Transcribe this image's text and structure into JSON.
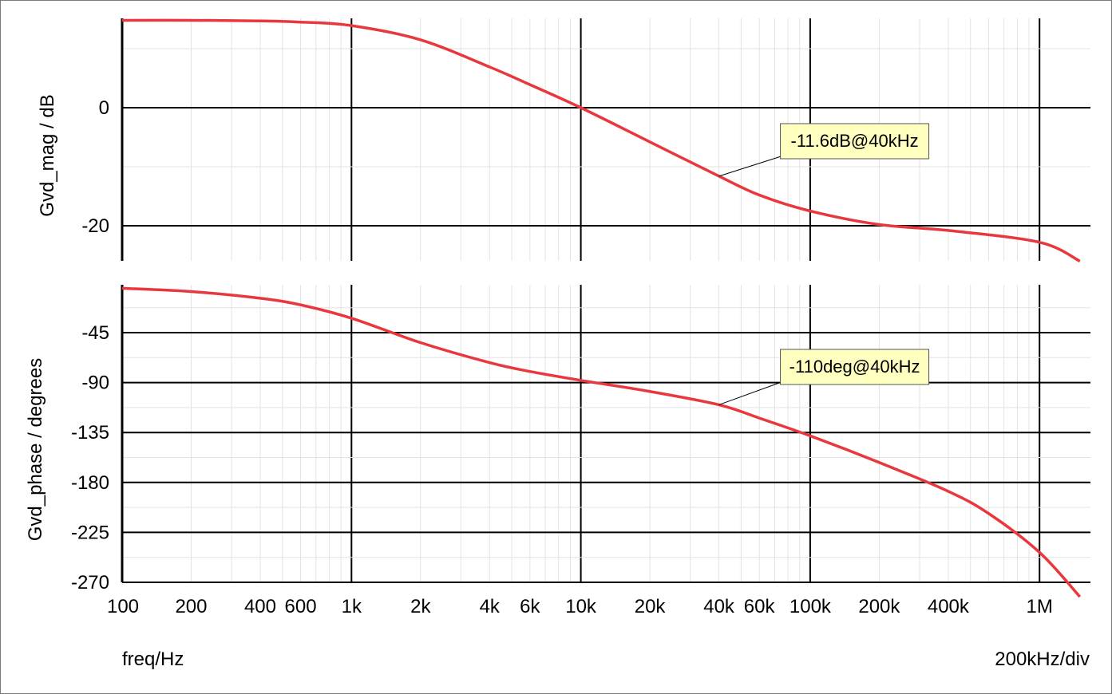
{
  "chart_data": [
    {
      "type": "line",
      "ylabel": "Gvd_mag / dB",
      "xscale": "log",
      "xlim": [
        100,
        1500000
      ],
      "ylim": [
        -26,
        15
      ],
      "yticks": [
        0,
        -20
      ],
      "grid": true,
      "series": [
        {
          "color": "#e8383d",
          "x": [
            100,
            200,
            400,
            600,
            1000,
            2000,
            4000,
            6000,
            10000,
            20000,
            40000,
            60000,
            100000,
            200000,
            400000,
            1000000,
            1500000
          ],
          "y": [
            14.8,
            14.8,
            14.7,
            14.5,
            13.9,
            11.5,
            6.9,
            3.9,
            0.0,
            -5.8,
            -11.6,
            -14.8,
            -17.5,
            -19.8,
            -20.8,
            -22.8,
            -26.0
          ]
        }
      ],
      "annotations": [
        {
          "text": "-11.6dB@40kHz",
          "x": 40000,
          "y": -11.6
        }
      ]
    },
    {
      "type": "line",
      "ylabel": "Gvd_phase / degrees",
      "xlabel": "freq/Hz",
      "xscale": "log",
      "xlim": [
        100,
        1500000
      ],
      "ylim": [
        -280,
        5
      ],
      "yticks": [
        -45,
        -90,
        -135,
        -180,
        -225,
        -270
      ],
      "xticks": [
        "100",
        "200",
        "400",
        "600",
        "1k",
        "2k",
        "4k",
        "6k",
        "10k",
        "20k",
        "40k",
        "60k",
        "100k",
        "200k",
        "400k",
        "1M"
      ],
      "x_per_div": "200kHz/div",
      "grid": true,
      "series": [
        {
          "color": "#e8383d",
          "x": [
            100,
            200,
            400,
            600,
            1000,
            2000,
            4000,
            6000,
            10000,
            20000,
            40000,
            60000,
            100000,
            200000,
            400000,
            600000,
            1000000,
            1500000
          ],
          "y": [
            -5,
            -8,
            -14,
            -20,
            -32,
            -54,
            -72,
            -80,
            -88,
            -98,
            -110,
            -122,
            -138,
            -162,
            -188,
            -208,
            -243,
            -283
          ]
        }
      ],
      "annotations": [
        {
          "text": "-110deg@40kHz",
          "x": 40000,
          "y": -110
        }
      ]
    }
  ]
}
